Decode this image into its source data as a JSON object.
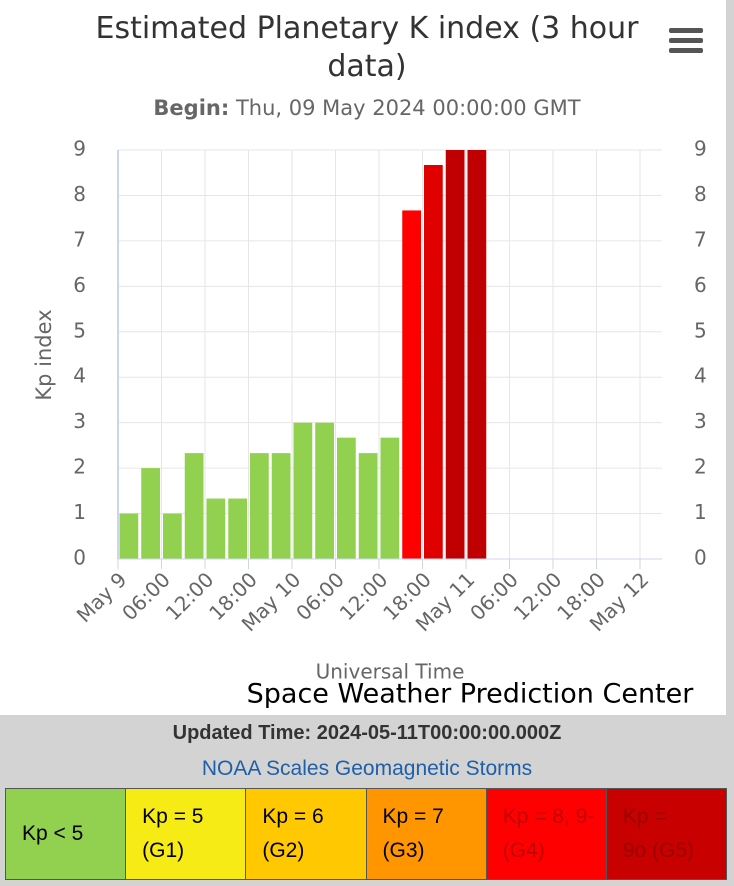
{
  "chart_data": {
    "type": "bar",
    "title": "Estimated Planetary K index (3 hour data)",
    "subtitle_label": "Begin:",
    "subtitle": "Thu, 09 May 2024 00:00:00 GMT",
    "y_label": "Kp index",
    "x_label": "Universal Time",
    "credit": "Space Weather Prediction Center",
    "x": [
      "2024-05-09T00:00:00Z",
      "2024-05-09T03:00:00Z",
      "2024-05-09T06:00:00Z",
      "2024-05-09T09:00:00Z",
      "2024-05-09T12:00:00Z",
      "2024-05-09T15:00:00Z",
      "2024-05-09T18:00:00Z",
      "2024-05-09T21:00:00Z",
      "2024-05-10T00:00:00Z",
      "2024-05-10T03:00:00Z",
      "2024-05-10T06:00:00Z",
      "2024-05-10T09:00:00Z",
      "2024-05-10T12:00:00Z",
      "2024-05-10T15:00:00Z",
      "2024-05-10T18:00:00Z",
      "2024-05-10T21:00:00Z",
      "2024-05-11T00:00:00Z"
    ],
    "values": [
      1,
      2,
      1,
      2.33,
      1.33,
      1.33,
      2.33,
      2.33,
      3,
      3,
      2.67,
      2.33,
      2.67,
      7.67,
      8.67,
      9,
      9
    ],
    "colors": [
      "#92d050",
      "#92d050",
      "#92d050",
      "#92d050",
      "#92d050",
      "#92d050",
      "#92d050",
      "#92d050",
      "#92d050",
      "#92d050",
      "#92d050",
      "#92d050",
      "#92d050",
      "#ff0000",
      "#e00000",
      "#c00000",
      "#c00000"
    ],
    "xlim": [
      "2024-05-09T00:00:00Z",
      "2024-05-12T00:00:00Z"
    ],
    "xticks": [
      {
        "value": "2024-05-09T00:00:00Z",
        "label": "May 9"
      },
      {
        "value": "2024-05-09T06:00:00Z",
        "label": "06:00"
      },
      {
        "value": "2024-05-09T12:00:00Z",
        "label": "12:00"
      },
      {
        "value": "2024-05-09T18:00:00Z",
        "label": "18:00"
      },
      {
        "value": "2024-05-10T00:00:00Z",
        "label": "May 10"
      },
      {
        "value": "2024-05-10T06:00:00Z",
        "label": "06:00"
      },
      {
        "value": "2024-05-10T12:00:00Z",
        "label": "12:00"
      },
      {
        "value": "2024-05-10T18:00:00Z",
        "label": "18:00"
      },
      {
        "value": "2024-05-11T00:00:00Z",
        "label": "May 11"
      },
      {
        "value": "2024-05-11T06:00:00Z",
        "label": "06:00"
      },
      {
        "value": "2024-05-11T12:00:00Z",
        "label": "12:00"
      },
      {
        "value": "2024-05-11T18:00:00Z",
        "label": "18:00"
      },
      {
        "value": "2024-05-12T00:00:00Z",
        "label": "May 12"
      }
    ],
    "ylim": [
      0,
      9
    ],
    "yticks": [
      0,
      1,
      2,
      3,
      4,
      5,
      6,
      7,
      8,
      9
    ],
    "y2lim": [
      0,
      9
    ],
    "y2ticks": [
      0,
      1,
      2,
      3,
      4,
      5,
      6,
      7,
      8,
      9
    ],
    "grid": true
  },
  "footer": {
    "updated": "Updated Time: 2024-05-11T00:00:00.000Z",
    "scales_link": "NOAA Scales Geomagnetic Storms",
    "scales": [
      {
        "lines": [
          "Kp < 5"
        ],
        "color": "#92d050",
        "text_color": "#000000"
      },
      {
        "lines": [
          "Kp = 5",
          "(G1)"
        ],
        "color": "#f6eb14",
        "text_color": "#000000"
      },
      {
        "lines": [
          "Kp = 6",
          "(G2)"
        ],
        "color": "#ffc800",
        "text_color": "#000000"
      },
      {
        "lines": [
          "Kp = 7",
          "(G3)"
        ],
        "color": "#ff9600",
        "text_color": "#000000"
      },
      {
        "lines": [
          "Kp = 8, 9-",
          "(G4)"
        ],
        "color": "#ff0000",
        "text_color": "#c00000"
      },
      {
        "lines": [
          "Kp =",
          "9o (G5)"
        ],
        "color": "#c80000",
        "text_color": "#9a0000"
      }
    ]
  }
}
